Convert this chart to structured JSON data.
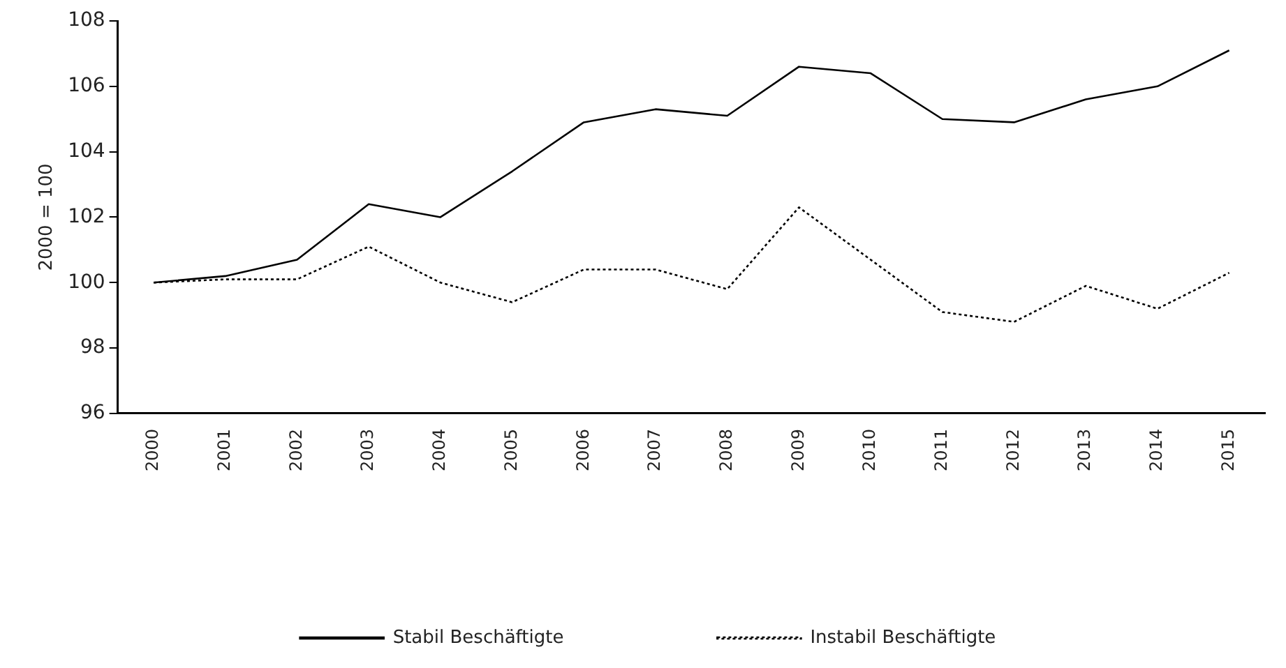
{
  "chart_data": {
    "type": "line",
    "ylabel": "2000 = 100",
    "categories": [
      "2000",
      "2001",
      "2002",
      "2003",
      "2004",
      "2005",
      "2006",
      "2007",
      "2008",
      "2009",
      "2010",
      "2011",
      "2012",
      "2013",
      "2014",
      "2015"
    ],
    "series": [
      {
        "name": "Stabil Beschäftigte",
        "color": "#000000",
        "line_style": "solid",
        "values": [
          100,
          100.2,
          100.7,
          102.4,
          102,
          103.4,
          104.9,
          105.3,
          105.1,
          106.6,
          106.4,
          105,
          104.9,
          105.6,
          106,
          107.1
        ]
      },
      {
        "name": "Instabil Beschäftigte",
        "color": "#000000",
        "line_style": "dotted",
        "values": [
          100,
          100.1,
          100.1,
          101.1,
          100,
          99.4,
          100.4,
          100.4,
          99.8,
          102.3,
          100.7,
          99.1,
          98.8,
          99.9,
          99.2,
          100.3
        ]
      }
    ],
    "ylim": [
      96,
      108
    ],
    "yticks": [
      96,
      98,
      100,
      102,
      104,
      106,
      108
    ],
    "grid": false,
    "legend": "bottom",
    "marker": "none"
  }
}
